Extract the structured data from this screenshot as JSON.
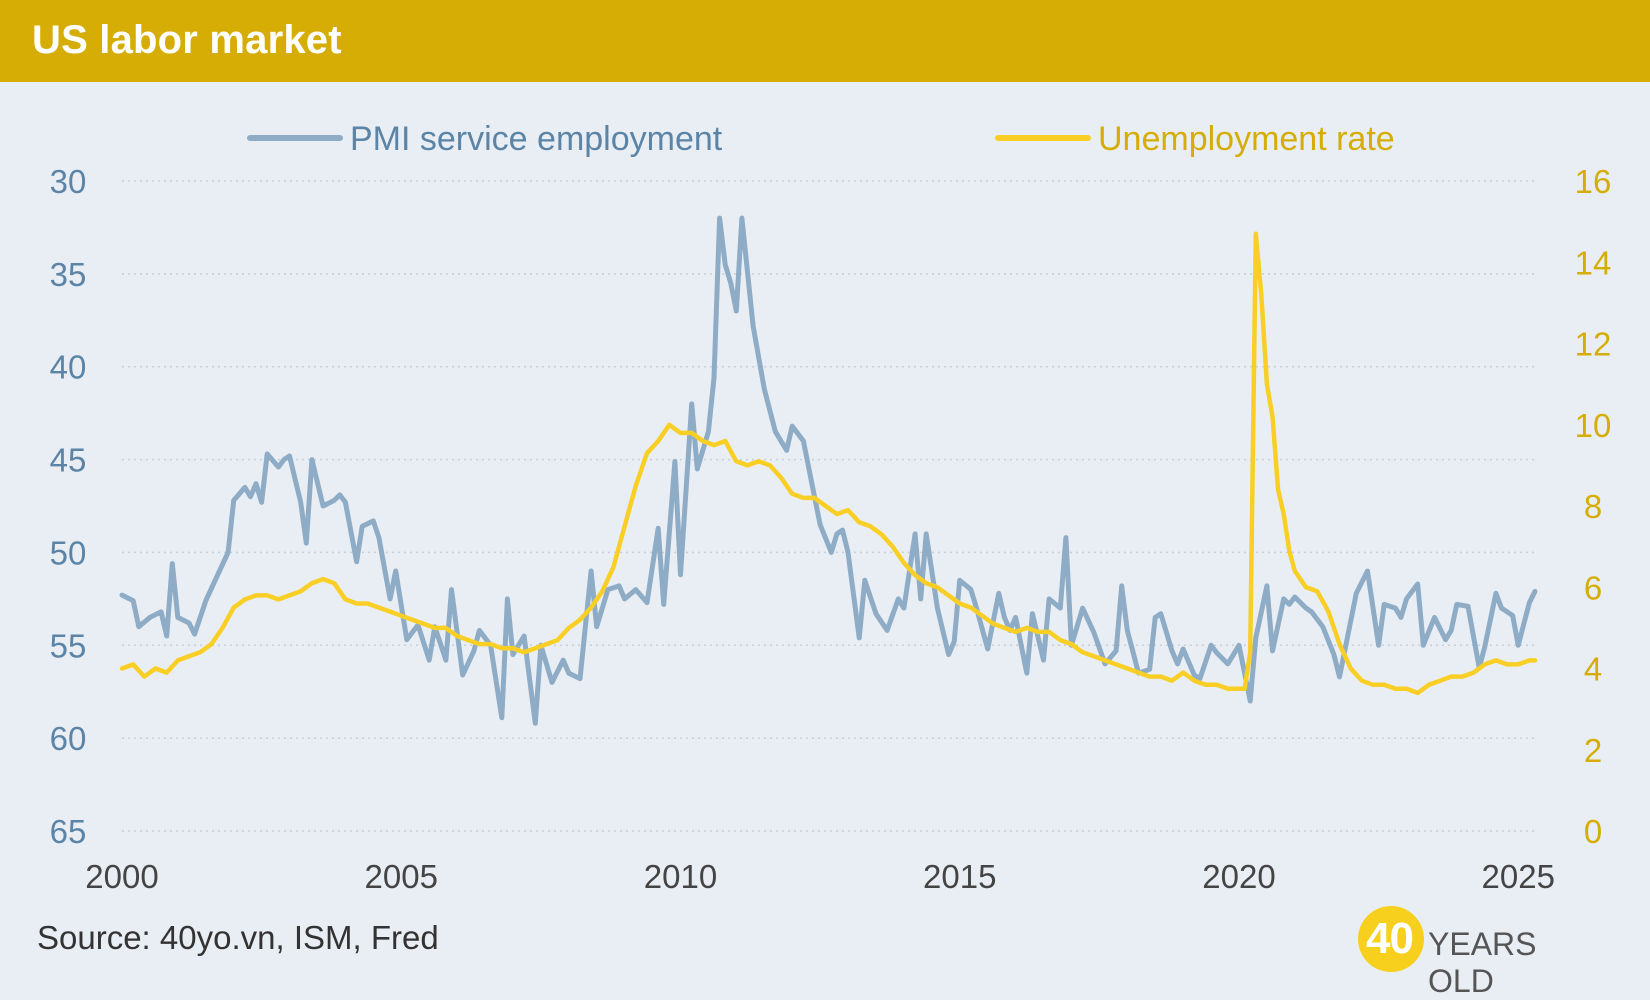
{
  "header": {
    "title": "US labor market"
  },
  "footer": {
    "source": "Source: 40yo.vn, ISM, Fred",
    "logo_number": "40",
    "logo_text": "YEARS OLD"
  },
  "colors": {
    "header_bg": "#d6ad05",
    "page_bg": "#e9eef4",
    "pmi": "#8eacc6",
    "unemployment": "#f9cf26",
    "left_axis_text": "#5b84a6",
    "right_axis_text": "#d6ad05",
    "x_axis_text": "#444444"
  },
  "chart_data": {
    "type": "line",
    "title": "",
    "xlabel": "",
    "ylabel": "",
    "xlim": [
      2000,
      2025.3
    ],
    "x_ticks": [
      "2000",
      "2005",
      "2010",
      "2015",
      "2020",
      "2025"
    ],
    "y_left": {
      "lim": [
        30,
        65
      ],
      "inverted": true,
      "ticks": [
        "30",
        "35",
        "40",
        "45",
        "50",
        "55",
        "60",
        "65"
      ]
    },
    "y_right": {
      "lim": [
        0,
        16
      ],
      "ticks": [
        "0",
        "2",
        "4",
        "6",
        "8",
        "10",
        "12",
        "14",
        "16"
      ]
    },
    "grid": "horizontal-dotted",
    "legend": "top-center",
    "series": [
      {
        "name": "PMI service employment",
        "axis": "left",
        "points": [
          [
            2000.0,
            52.3
          ],
          [
            2000.2,
            52.6
          ],
          [
            2000.3,
            54.0
          ],
          [
            2000.5,
            53.5
          ],
          [
            2000.7,
            53.2
          ],
          [
            2000.8,
            54.5
          ],
          [
            2000.9,
            50.6
          ],
          [
            2001.0,
            53.5
          ],
          [
            2001.2,
            53.8
          ],
          [
            2001.3,
            54.4
          ],
          [
            2001.5,
            52.6
          ],
          [
            2001.7,
            51.3
          ],
          [
            2001.9,
            50.0
          ],
          [
            2002.0,
            47.2
          ],
          [
            2002.2,
            46.5
          ],
          [
            2002.3,
            47.0
          ],
          [
            2002.4,
            46.3
          ],
          [
            2002.5,
            47.3
          ],
          [
            2002.6,
            44.7
          ],
          [
            2002.8,
            45.4
          ],
          [
            2002.9,
            45.0
          ],
          [
            2003.0,
            44.8
          ],
          [
            2003.2,
            47.3
          ],
          [
            2003.3,
            49.5
          ],
          [
            2003.4,
            45.0
          ],
          [
            2003.6,
            47.5
          ],
          [
            2003.8,
            47.2
          ],
          [
            2003.9,
            46.9
          ],
          [
            2004.0,
            47.3
          ],
          [
            2004.2,
            50.5
          ],
          [
            2004.3,
            48.6
          ],
          [
            2004.5,
            48.3
          ],
          [
            2004.6,
            49.2
          ],
          [
            2004.8,
            52.5
          ],
          [
            2004.9,
            51.0
          ],
          [
            2005.1,
            54.7
          ],
          [
            2005.3,
            53.9
          ],
          [
            2005.5,
            55.8
          ],
          [
            2005.6,
            54.0
          ],
          [
            2005.8,
            55.8
          ],
          [
            2005.9,
            52.0
          ],
          [
            2006.1,
            56.6
          ],
          [
            2006.3,
            55.3
          ],
          [
            2006.4,
            54.2
          ],
          [
            2006.6,
            55.0
          ],
          [
            2006.8,
            58.9
          ],
          [
            2006.9,
            52.5
          ],
          [
            2007.0,
            55.5
          ],
          [
            2007.2,
            54.5
          ],
          [
            2007.4,
            59.2
          ],
          [
            2007.5,
            55.0
          ],
          [
            2007.7,
            57.0
          ],
          [
            2007.9,
            55.8
          ],
          [
            2008.0,
            56.5
          ],
          [
            2008.2,
            56.8
          ],
          [
            2008.4,
            51.0
          ],
          [
            2008.5,
            54.0
          ],
          [
            2008.7,
            52.0
          ],
          [
            2008.9,
            51.8
          ],
          [
            2009.0,
            52.5
          ],
          [
            2009.2,
            52.0
          ],
          [
            2009.4,
            52.7
          ],
          [
            2009.6,
            48.7
          ],
          [
            2009.7,
            52.8
          ],
          [
            2009.9,
            45.1
          ],
          [
            2010.0,
            51.2
          ],
          [
            2010.2,
            42.0
          ],
          [
            2010.3,
            45.5
          ],
          [
            2010.5,
            43.5
          ],
          [
            2010.6,
            40.6
          ],
          [
            2010.7,
            32.0
          ],
          [
            2010.8,
            34.5
          ],
          [
            2010.9,
            35.5
          ],
          [
            2011.0,
            37.0
          ],
          [
            2011.1,
            32.0
          ],
          [
            2011.3,
            37.8
          ],
          [
            2011.4,
            39.5
          ],
          [
            2011.5,
            41.2
          ],
          [
            2011.7,
            43.5
          ],
          [
            2011.9,
            44.5
          ],
          [
            2012.0,
            43.2
          ],
          [
            2012.2,
            44.0
          ],
          [
            2012.4,
            47.0
          ],
          [
            2012.5,
            48.5
          ],
          [
            2012.7,
            50.0
          ],
          [
            2012.8,
            49.0
          ],
          [
            2012.9,
            48.8
          ],
          [
            2013.0,
            50.0
          ],
          [
            2013.2,
            54.6
          ],
          [
            2013.3,
            51.5
          ],
          [
            2013.5,
            53.3
          ],
          [
            2013.7,
            54.2
          ],
          [
            2013.9,
            52.5
          ],
          [
            2014.0,
            53.0
          ],
          [
            2014.2,
            49.0
          ],
          [
            2014.3,
            52.5
          ],
          [
            2014.4,
            49.0
          ],
          [
            2014.6,
            53.0
          ],
          [
            2014.8,
            55.5
          ],
          [
            2014.9,
            54.8
          ],
          [
            2015.0,
            51.5
          ],
          [
            2015.2,
            52.0
          ],
          [
            2015.3,
            53.0
          ],
          [
            2015.5,
            55.2
          ],
          [
            2015.7,
            52.2
          ],
          [
            2015.8,
            53.5
          ],
          [
            2015.9,
            54.2
          ],
          [
            2016.0,
            53.5
          ],
          [
            2016.2,
            56.5
          ],
          [
            2016.3,
            53.3
          ],
          [
            2016.5,
            55.8
          ],
          [
            2016.6,
            52.5
          ],
          [
            2016.8,
            53.0
          ],
          [
            2016.9,
            49.2
          ],
          [
            2017.0,
            55.0
          ],
          [
            2017.2,
            53.0
          ],
          [
            2017.4,
            54.3
          ],
          [
            2017.6,
            56.0
          ],
          [
            2017.8,
            55.3
          ],
          [
            2017.9,
            51.8
          ],
          [
            2018.0,
            54.2
          ],
          [
            2018.2,
            56.5
          ],
          [
            2018.4,
            56.3
          ],
          [
            2018.5,
            53.5
          ],
          [
            2018.6,
            53.3
          ],
          [
            2018.8,
            55.3
          ],
          [
            2018.9,
            56.0
          ],
          [
            2019.0,
            55.2
          ],
          [
            2019.2,
            56.6
          ],
          [
            2019.3,
            56.8
          ],
          [
            2019.5,
            55.0
          ],
          [
            2019.6,
            55.4
          ],
          [
            2019.8,
            56.0
          ],
          [
            2020.0,
            55.0
          ],
          [
            2020.2,
            58.0
          ],
          [
            2020.3,
            54.6
          ],
          [
            2020.5,
            51.8
          ],
          [
            2020.6,
            55.3
          ],
          [
            2020.8,
            52.5
          ],
          [
            2020.9,
            52.8
          ],
          [
            2021.0,
            52.4
          ],
          [
            2021.2,
            53.0
          ],
          [
            2021.3,
            53.2
          ],
          [
            2021.5,
            54.0
          ],
          [
            2021.7,
            55.5
          ],
          [
            2021.8,
            56.7
          ],
          [
            2021.9,
            55.2
          ],
          [
            2022.1,
            52.2
          ],
          [
            2022.3,
            51.0
          ],
          [
            2022.5,
            55.0
          ],
          [
            2022.6,
            52.8
          ],
          [
            2022.8,
            53.0
          ],
          [
            2022.9,
            53.5
          ],
          [
            2023.0,
            52.5
          ],
          [
            2023.2,
            51.7
          ],
          [
            2023.3,
            55.0
          ],
          [
            2023.5,
            53.5
          ],
          [
            2023.7,
            54.7
          ],
          [
            2023.8,
            54.2
          ],
          [
            2023.9,
            52.8
          ],
          [
            2024.1,
            52.9
          ],
          [
            2024.3,
            56.2
          ],
          [
            2024.4,
            55.1
          ],
          [
            2024.6,
            52.2
          ],
          [
            2024.7,
            53.0
          ],
          [
            2024.9,
            53.4
          ],
          [
            2025.0,
            55.0
          ],
          [
            2025.2,
            52.7
          ],
          [
            2025.3,
            52.1
          ]
        ]
      },
      {
        "name": "Unemployment rate",
        "axis": "right",
        "points": [
          [
            2000.0,
            4.0
          ],
          [
            2000.2,
            4.1
          ],
          [
            2000.4,
            3.8
          ],
          [
            2000.6,
            4.0
          ],
          [
            2000.8,
            3.9
          ],
          [
            2001.0,
            4.2
          ],
          [
            2001.2,
            4.3
          ],
          [
            2001.4,
            4.4
          ],
          [
            2001.6,
            4.6
          ],
          [
            2001.8,
            5.0
          ],
          [
            2002.0,
            5.5
          ],
          [
            2002.2,
            5.7
          ],
          [
            2002.4,
            5.8
          ],
          [
            2002.6,
            5.8
          ],
          [
            2002.8,
            5.7
          ],
          [
            2003.0,
            5.8
          ],
          [
            2003.2,
            5.9
          ],
          [
            2003.4,
            6.1
          ],
          [
            2003.6,
            6.2
          ],
          [
            2003.8,
            6.1
          ],
          [
            2004.0,
            5.7
          ],
          [
            2004.2,
            5.6
          ],
          [
            2004.4,
            5.6
          ],
          [
            2004.6,
            5.5
          ],
          [
            2004.8,
            5.4
          ],
          [
            2005.0,
            5.3
          ],
          [
            2005.2,
            5.2
          ],
          [
            2005.4,
            5.1
          ],
          [
            2005.6,
            5.0
          ],
          [
            2005.8,
            5.0
          ],
          [
            2006.0,
            4.8
          ],
          [
            2006.2,
            4.7
          ],
          [
            2006.4,
            4.6
          ],
          [
            2006.6,
            4.6
          ],
          [
            2006.8,
            4.5
          ],
          [
            2007.0,
            4.5
          ],
          [
            2007.2,
            4.4
          ],
          [
            2007.4,
            4.5
          ],
          [
            2007.6,
            4.6
          ],
          [
            2007.8,
            4.7
          ],
          [
            2008.0,
            5.0
          ],
          [
            2008.2,
            5.2
          ],
          [
            2008.4,
            5.5
          ],
          [
            2008.6,
            5.9
          ],
          [
            2008.8,
            6.5
          ],
          [
            2009.0,
            7.5
          ],
          [
            2009.2,
            8.5
          ],
          [
            2009.4,
            9.3
          ],
          [
            2009.6,
            9.6
          ],
          [
            2009.8,
            10.0
          ],
          [
            2010.0,
            9.8
          ],
          [
            2010.2,
            9.8
          ],
          [
            2010.4,
            9.6
          ],
          [
            2010.6,
            9.5
          ],
          [
            2010.8,
            9.6
          ],
          [
            2011.0,
            9.1
          ],
          [
            2011.2,
            9.0
          ],
          [
            2011.4,
            9.1
          ],
          [
            2011.6,
            9.0
          ],
          [
            2011.8,
            8.7
          ],
          [
            2012.0,
            8.3
          ],
          [
            2012.2,
            8.2
          ],
          [
            2012.4,
            8.2
          ],
          [
            2012.6,
            8.0
          ],
          [
            2012.8,
            7.8
          ],
          [
            2013.0,
            7.9
          ],
          [
            2013.2,
            7.6
          ],
          [
            2013.4,
            7.5
          ],
          [
            2013.6,
            7.3
          ],
          [
            2013.8,
            7.0
          ],
          [
            2014.0,
            6.6
          ],
          [
            2014.2,
            6.3
          ],
          [
            2014.4,
            6.1
          ],
          [
            2014.6,
            6.0
          ],
          [
            2014.8,
            5.8
          ],
          [
            2015.0,
            5.6
          ],
          [
            2015.2,
            5.5
          ],
          [
            2015.4,
            5.3
          ],
          [
            2015.6,
            5.1
          ],
          [
            2015.8,
            5.0
          ],
          [
            2016.0,
            4.9
          ],
          [
            2016.2,
            5.0
          ],
          [
            2016.4,
            4.9
          ],
          [
            2016.6,
            4.9
          ],
          [
            2016.8,
            4.7
          ],
          [
            2017.0,
            4.6
          ],
          [
            2017.2,
            4.4
          ],
          [
            2017.4,
            4.3
          ],
          [
            2017.6,
            4.2
          ],
          [
            2017.8,
            4.1
          ],
          [
            2018.0,
            4.0
          ],
          [
            2018.2,
            3.9
          ],
          [
            2018.4,
            3.8
          ],
          [
            2018.6,
            3.8
          ],
          [
            2018.8,
            3.7
          ],
          [
            2019.0,
            3.9
          ],
          [
            2019.2,
            3.7
          ],
          [
            2019.4,
            3.6
          ],
          [
            2019.6,
            3.6
          ],
          [
            2019.8,
            3.5
          ],
          [
            2020.0,
            3.5
          ],
          [
            2020.1,
            3.5
          ],
          [
            2020.2,
            4.4
          ],
          [
            2020.3,
            14.7
          ],
          [
            2020.4,
            13.2
          ],
          [
            2020.5,
            11.0
          ],
          [
            2020.6,
            10.2
          ],
          [
            2020.7,
            8.4
          ],
          [
            2020.8,
            7.8
          ],
          [
            2020.9,
            6.9
          ],
          [
            2021.0,
            6.4
          ],
          [
            2021.2,
            6.0
          ],
          [
            2021.4,
            5.9
          ],
          [
            2021.6,
            5.4
          ],
          [
            2021.8,
            4.6
          ],
          [
            2022.0,
            4.0
          ],
          [
            2022.2,
            3.7
          ],
          [
            2022.4,
            3.6
          ],
          [
            2022.6,
            3.6
          ],
          [
            2022.8,
            3.5
          ],
          [
            2023.0,
            3.5
          ],
          [
            2023.2,
            3.4
          ],
          [
            2023.4,
            3.6
          ],
          [
            2023.6,
            3.7
          ],
          [
            2023.8,
            3.8
          ],
          [
            2024.0,
            3.8
          ],
          [
            2024.2,
            3.9
          ],
          [
            2024.4,
            4.1
          ],
          [
            2024.6,
            4.2
          ],
          [
            2024.8,
            4.1
          ],
          [
            2025.0,
            4.1
          ],
          [
            2025.2,
            4.2
          ],
          [
            2025.3,
            4.2
          ]
        ]
      }
    ]
  }
}
